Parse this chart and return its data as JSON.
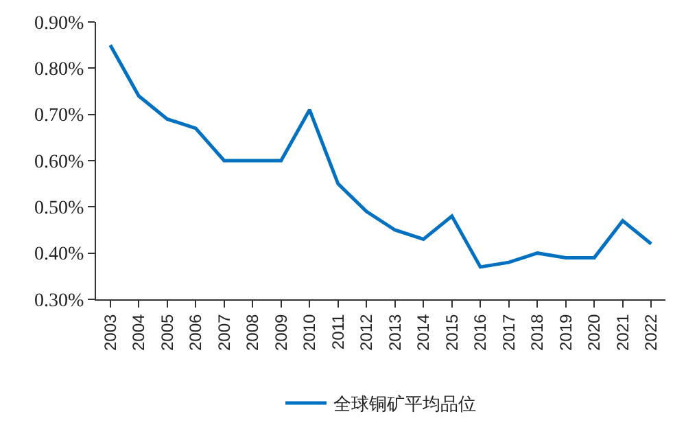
{
  "chart_data": {
    "type": "line",
    "categories": [
      "2003",
      "2004",
      "2005",
      "2006",
      "2007",
      "2008",
      "2009",
      "2010",
      "2011",
      "2012",
      "2013",
      "2014",
      "2015",
      "2016",
      "2017",
      "2018",
      "2019",
      "2020",
      "2021",
      "2022"
    ],
    "series": [
      {
        "name": "全球铜矿平均品位",
        "color": "#0070c0",
        "values": [
          0.85,
          0.74,
          0.69,
          0.67,
          0.6,
          0.6,
          0.6,
          0.71,
          0.55,
          0.49,
          0.45,
          0.43,
          0.48,
          0.37,
          0.38,
          0.4,
          0.39,
          0.39,
          0.47,
          0.42
        ]
      }
    ],
    "ylim": [
      0.3,
      0.9
    ],
    "yticks": [
      {
        "value": 0.3,
        "label": "0.30%"
      },
      {
        "value": 0.4,
        "label": "0.40%"
      },
      {
        "value": 0.5,
        "label": "0.50%"
      },
      {
        "value": 0.6,
        "label": "0.60%"
      },
      {
        "value": 0.7,
        "label": "0.70%"
      },
      {
        "value": 0.8,
        "label": "0.80%"
      },
      {
        "value": 0.9,
        "label": "0.90%"
      }
    ],
    "legend": "bottom",
    "marker": "none",
    "line_style": "solid"
  }
}
